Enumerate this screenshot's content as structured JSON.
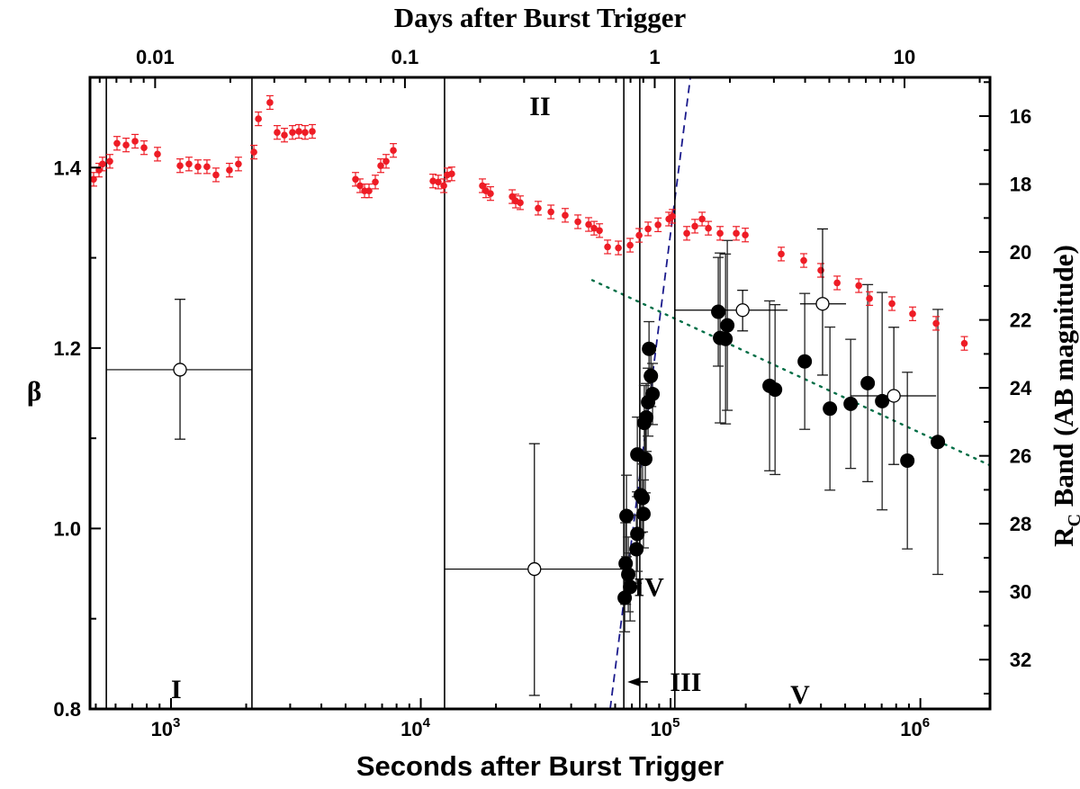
{
  "chart_data": {
    "type": "scatter",
    "title": "",
    "xlabel": "Seconds after Burst Trigger",
    "x2label": "Days after Burst Trigger",
    "ylabel": "β",
    "y2label": "R",
    "y2label_sub": "C",
    "y2label_rest": " Band (AB magnitude)",
    "xscale": "log",
    "xlim": [
      474,
      1900000
    ],
    "ylim": [
      0.8,
      1.5
    ],
    "y2lim": [
      33.45,
      14.86
    ],
    "xticks": [
      {
        "base": "10",
        "exp": "3",
        "value": 1000
      },
      {
        "base": "10",
        "exp": "4",
        "value": 10000
      },
      {
        "base": "10",
        "exp": "5",
        "value": 100000
      },
      {
        "base": "10",
        "exp": "6",
        "value": 1000000
      }
    ],
    "x2ticks": [
      {
        "label": "0.01",
        "days": 0.01
      },
      {
        "label": "0.1",
        "days": 0.1
      },
      {
        "label": "1",
        "days": 1
      },
      {
        "label": "10",
        "days": 10
      }
    ],
    "yticks": [
      "0.8",
      "1.0",
      "1.2",
      "1.4"
    ],
    "y2ticks": [
      "16",
      "18",
      "20",
      "22",
      "24",
      "26",
      "28",
      "30",
      "32"
    ],
    "colors": {
      "red": "#ee1c25",
      "black": "#000000",
      "blue_dashed": "#1a1a8c",
      "green_dotted": "#006e46"
    },
    "region_boundaries_s": [
      551,
      2109,
      12450,
      65000,
      75300,
      104000
    ],
    "regions": [
      {
        "label": "I",
        "t": 1050,
        "y": 0.812
      },
      {
        "label": "II",
        "t": 30000,
        "y": 1.458
      },
      {
        "label": "III",
        "t": 115000,
        "y": 0.82
      },
      {
        "label": "IV",
        "t": 82000,
        "y": 0.925
      },
      {
        "label": "V",
        "t": 330000,
        "y": 0.806
      }
    ],
    "series": [
      {
        "name": "red optical light curve",
        "axis": "right",
        "err": 0.2,
        "points": [
          [
            490,
            17.86
          ],
          [
            515,
            17.59
          ],
          [
            532,
            17.41
          ],
          [
            569,
            17.33
          ],
          [
            608,
            16.8
          ],
          [
            661,
            16.85
          ],
          [
            718,
            16.74
          ],
          [
            780,
            16.93
          ],
          [
            883,
            17.12
          ],
          [
            1087,
            17.46
          ],
          [
            1180,
            17.41
          ],
          [
            1282,
            17.49
          ],
          [
            1393,
            17.49
          ],
          [
            1514,
            17.73
          ],
          [
            1714,
            17.59
          ],
          [
            1862,
            17.41
          ],
          [
            2147,
            17.06
          ],
          [
            2239,
            16.08
          ],
          [
            2489,
            15.6
          ],
          [
            2661,
            16.48
          ],
          [
            2845,
            16.56
          ],
          [
            3064,
            16.48
          ],
          [
            3250,
            16.45
          ],
          [
            3443,
            16.48
          ],
          [
            3679,
            16.45
          ],
          [
            5480,
            17.86
          ],
          [
            5710,
            18.05
          ],
          [
            5955,
            18.2
          ],
          [
            6206,
            18.2
          ],
          [
            6577,
            17.94
          ],
          [
            6912,
            17.46
          ],
          [
            7265,
            17.33
          ],
          [
            7766,
            17.01
          ],
          [
            11190,
            17.91
          ],
          [
            11750,
            17.94
          ],
          [
            12360,
            18.05
          ],
          [
            12760,
            17.73
          ],
          [
            13300,
            17.7
          ],
          [
            17650,
            18.05
          ],
          [
            18240,
            18.2
          ],
          [
            19010,
            18.28
          ],
          [
            23230,
            18.37
          ],
          [
            23990,
            18.5
          ],
          [
            25010,
            18.55
          ],
          [
            29510,
            18.71
          ],
          [
            33190,
            18.82
          ],
          [
            37850,
            18.92
          ],
          [
            42550,
            19.11
          ],
          [
            46990,
            19.19
          ],
          [
            49410,
            19.3
          ],
          [
            51920,
            19.37
          ],
          [
            55950,
            19.85
          ],
          [
            61820,
            19.88
          ],
          [
            68870,
            19.8
          ],
          [
            74820,
            19.51
          ],
          [
            81280,
            19.32
          ],
          [
            89080,
            19.2
          ],
          [
            98400,
            19.03
          ],
          [
            101700,
            18.95
          ],
          [
            116100,
            19.45
          ],
          [
            125100,
            19.24
          ],
          [
            133700,
            19.03
          ],
          [
            141700,
            19.3
          ],
          [
            157800,
            19.45
          ],
          [
            183200,
            19.45
          ],
          [
            199100,
            19.5
          ],
          [
            277300,
            20.06
          ],
          [
            341300,
            20.25
          ],
          [
            399500,
            20.54
          ],
          [
            464300,
            20.91
          ],
          [
            566700,
            20.99
          ],
          [
            625600,
            21.37
          ],
          [
            769600,
            21.52
          ],
          [
            931000,
            21.82
          ],
          [
            1156000,
            22.1
          ],
          [
            1500000,
            22.69
          ]
        ]
      },
      {
        "name": "black filled points",
        "axis": "right",
        "points": [
          [
            65500,
            30.18,
            1.0
          ],
          [
            66100,
            29.17,
            1.2
          ],
          [
            67700,
            29.49,
            1.1
          ],
          [
            68870,
            29.86,
            1.0
          ],
          [
            66600,
            27.77,
            1.2
          ],
          [
            72980,
            28.75,
            1.0
          ],
          [
            73600,
            28.3,
            1.1
          ],
          [
            77900,
            27.71,
            1.0
          ],
          [
            76000,
            27.16,
            1.1
          ],
          [
            77300,
            27.24,
            1.0
          ],
          [
            73600,
            25.96,
            1.1
          ],
          [
            79200,
            26.09,
            1.0
          ],
          [
            79900,
            24.87,
            1.0
          ],
          [
            78500,
            25.03,
            1.1
          ],
          [
            81280,
            24.42,
            1.0
          ],
          [
            84700,
            24.18,
            0.9
          ],
          [
            83400,
            23.65,
            0.9
          ],
          [
            82000,
            22.85,
            0.8
          ],
          [
            155200,
            21.76,
            1.6
          ],
          [
            157800,
            22.53,
            2.5
          ],
          [
            166000,
            22.56,
            2.5
          ],
          [
            168700,
            22.16,
            2.5
          ],
          [
            249100,
            23.94,
            2.5
          ],
          [
            262000,
            24.05,
            2.5
          ],
          [
            344400,
            23.22,
            2.0
          ],
          [
            434500,
            24.61,
            2.4
          ],
          [
            526000,
            24.47,
            1.9
          ],
          [
            615500,
            23.86,
            2.9
          ],
          [
            703000,
            24.39,
            3.2
          ],
          [
            887000,
            26.14,
            2.6
          ],
          [
            1175000,
            25.59,
            3.9
          ]
        ]
      },
      {
        "name": "open circles (beta)",
        "axis": "left",
        "points": [
          {
            "t": 1087,
            "t_lo": 551,
            "t_hi": 2109,
            "beta": 1.176,
            "b_lo": 1.099,
            "b_hi": 1.254
          },
          {
            "t": 28500,
            "t_lo": 12450,
            "t_hi": 65000,
            "beta": 0.955,
            "b_lo": 0.815,
            "b_hi": 1.094
          },
          {
            "t": 194300,
            "t_lo": 103300,
            "t_hi": 294000,
            "beta": 1.242,
            "b_lo": 1.219,
            "b_hi": 1.264
          },
          {
            "t": 406000,
            "t_lo": 330000,
            "t_hi": 504000,
            "beta": 1.249,
            "b_lo": 1.17,
            "b_hi": 1.332
          },
          {
            "t": 783000,
            "t_lo": 526000,
            "t_hi": 1156000,
            "beta": 1.147,
            "b_lo": 1.071,
            "b_hi": 1.223
          }
        ]
      },
      {
        "name": "steep fit (dashed)",
        "axis": "right",
        "line": [
          [
            57300,
            33.45
          ],
          [
            120000,
            14.86
          ]
        ]
      },
      {
        "name": "shallow fit (dotted)",
        "axis": "right",
        "line": [
          [
            48600,
            20.83
          ],
          [
            1900000,
            26.28
          ]
        ]
      }
    ]
  }
}
